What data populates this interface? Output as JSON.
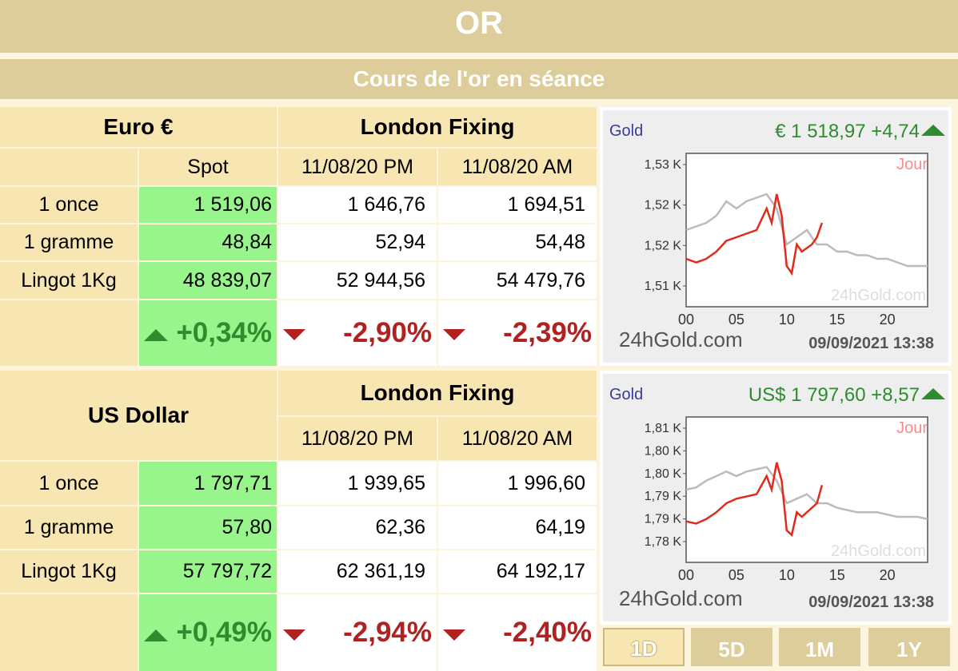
{
  "header": {
    "title": "OR",
    "subtitle": "Cours de l'or en séance"
  },
  "eur": {
    "currency": "Euro €",
    "fixing_title": "London Fixing",
    "col_spot": "Spot",
    "col_pm": "11/08/20 PM",
    "col_am": "11/08/20 AM",
    "rows": [
      {
        "label": "1 once",
        "spot": "1 519,06",
        "pm": "1 646,76",
        "am": "1 694,51"
      },
      {
        "label": "1 gramme",
        "spot": "48,84",
        "pm": "52,94",
        "am": "54,48"
      },
      {
        "label": "Lingot 1Kg",
        "spot": "48 839,07",
        "pm": "52 944,56",
        "am": "54 479,76"
      }
    ],
    "change": {
      "spot": "+0,34%",
      "pm": "-2,90%",
      "am": "-2,39%"
    }
  },
  "usd": {
    "currency": "US Dollar",
    "fixing_title": "London Fixing",
    "col_pm": "11/08/20 PM",
    "col_am": "11/08/20 AM",
    "rows": [
      {
        "label": "1 once",
        "spot": "1 797,71",
        "pm": "1 939,65",
        "am": "1 996,60"
      },
      {
        "label": "1 gramme",
        "spot": "57,80",
        "pm": "62,36",
        "am": "64,19"
      },
      {
        "label": "Lingot 1Kg",
        "spot": "57 797,72",
        "pm": "62 361,19",
        "am": "64 192,17"
      }
    ],
    "change": {
      "spot": "+0,49%",
      "pm": "-2,94%",
      "am": "-2,40%"
    }
  },
  "chart_data": [
    {
      "type": "line",
      "title": "Gold",
      "price_label": "€  1 518,97 +4,74",
      "period_label": "Jour",
      "watermark": "24hGold.com",
      "footer_brand": "24hGold.com",
      "footer_date": "09/09/2021 13:38",
      "x_ticks": [
        "00",
        "05",
        "10",
        "15",
        "20"
      ],
      "y_ticks": [
        "1,53 K",
        "1,52 K",
        "1,52 K",
        "1,51 K"
      ],
      "xlim": [
        0,
        24
      ],
      "ylim": [
        1508,
        1528
      ],
      "series": [
        {
          "color": "#e02a1c",
          "x": [
            0,
            1,
            2,
            3,
            4,
            5,
            6,
            7,
            8,
            8.5,
            9,
            9.5,
            10,
            10.5,
            11,
            11.5,
            12,
            12.5,
            13,
            13.5
          ],
          "y": [
            1514,
            1513.5,
            1514,
            1515,
            1516.5,
            1517,
            1517.5,
            1518,
            1521,
            1519,
            1523,
            1520,
            1513,
            1512,
            1516,
            1515,
            1515.5,
            1516,
            1517,
            1519
          ]
        },
        {
          "color": "#bbbbbb",
          "x": [
            0,
            1,
            2,
            3,
            4,
            5,
            6,
            7,
            8,
            9,
            10,
            11,
            12,
            13,
            14,
            15,
            16,
            17,
            18,
            19,
            20,
            21,
            22,
            23,
            24
          ],
          "y": [
            1518,
            1518.5,
            1519,
            1520,
            1522,
            1521,
            1522,
            1522.5,
            1523,
            1521,
            1516,
            1517,
            1518,
            1516,
            1516,
            1515,
            1515,
            1514.5,
            1514.5,
            1514,
            1514,
            1513.5,
            1513,
            1513,
            1513
          ]
        }
      ]
    },
    {
      "type": "line",
      "title": "Gold",
      "price_label": "US$  1 797,60 +8,57",
      "period_label": "Jour",
      "watermark": "24hGold.com",
      "footer_brand": "24hGold.com",
      "footer_date": "09/09/2021 13:38",
      "x_ticks": [
        "00",
        "05",
        "10",
        "15",
        "20"
      ],
      "y_ticks": [
        "1,81 K",
        "1,80 K",
        "1,80 K",
        "1,79 K",
        "1,79 K",
        "1,78 K"
      ],
      "xlim": [
        0,
        24
      ],
      "ylim": [
        1780,
        1810
      ],
      "series": [
        {
          "color": "#e02a1c",
          "x": [
            0,
            1,
            2,
            3,
            4,
            5,
            6,
            7,
            8,
            8.5,
            9,
            9.5,
            10,
            10.5,
            11,
            11.5,
            12,
            12.5,
            13,
            13.5
          ],
          "y": [
            1788,
            1787.5,
            1788.5,
            1790,
            1792,
            1793,
            1793.5,
            1794,
            1798,
            1795,
            1801,
            1797,
            1786,
            1785,
            1790,
            1789,
            1790,
            1791,
            1792,
            1796
          ]
        },
        {
          "color": "#bbbbbb",
          "x": [
            0,
            1,
            2,
            3,
            4,
            5,
            6,
            7,
            8,
            9,
            10,
            11,
            12,
            13,
            14,
            15,
            16,
            17,
            18,
            19,
            20,
            21,
            22,
            23,
            24
          ],
          "y": [
            1795,
            1795.5,
            1797,
            1798,
            1799,
            1798,
            1799,
            1799.5,
            1800,
            1797,
            1792,
            1793,
            1794,
            1792,
            1792,
            1791,
            1790.5,
            1790,
            1790,
            1790,
            1789.5,
            1789,
            1789,
            1789,
            1788.5
          ]
        }
      ]
    }
  ],
  "period_buttons": [
    "1D",
    "5D",
    "1M",
    "1Y"
  ]
}
